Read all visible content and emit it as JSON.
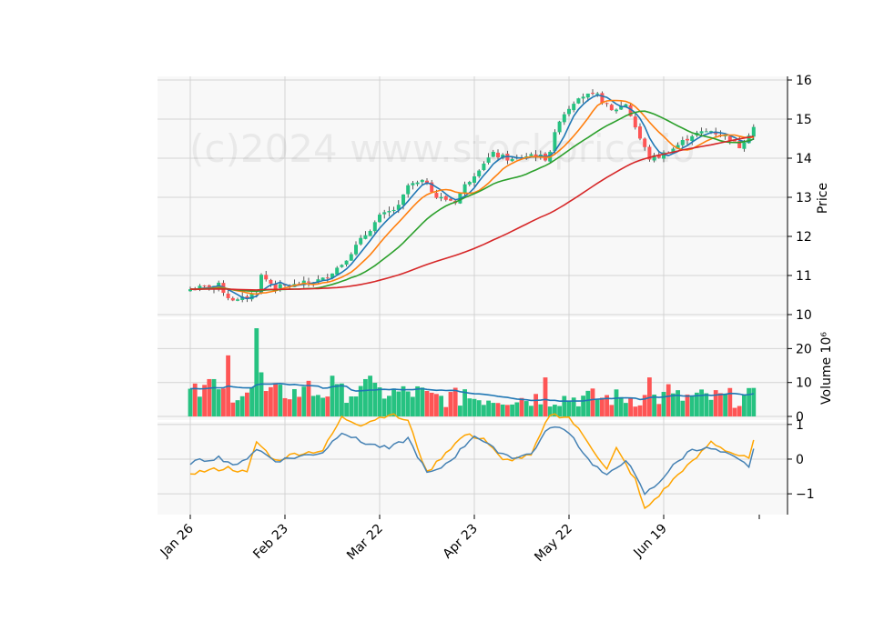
{
  "watermark": "(c)2024 www.stockprice.io",
  "colors": {
    "up": "#26c281",
    "down": "#fe5555",
    "ma_blue": "#1f77b4",
    "ma_orange": "#ff7f0e",
    "ma_green": "#2ca02c",
    "ma_red": "#d62728",
    "vol_ma": "#1f77b4",
    "osc_orange": "#ffa500",
    "osc_blue": "#4682b4",
    "panel_bg": "#f8f8f8",
    "grid": "#d3d3d3"
  },
  "chart_data": {
    "type": "candlestick",
    "x_labels": [
      "Jan 26",
      "Feb 23",
      "Mar 22",
      "Apr 23",
      "May 22",
      "Jun 19"
    ],
    "x_label_indices": [
      0,
      20,
      40,
      60,
      80,
      100
    ],
    "panels": {
      "price": {
        "ylabel": "Price",
        "ylim": [
          10,
          16
        ],
        "ticks": [
          10,
          11,
          12,
          13,
          14,
          15,
          16
        ]
      },
      "volume": {
        "ylabel": "Volume  10⁶",
        "ylim": [
          0,
          26
        ],
        "ticks": [
          0,
          10,
          20
        ]
      },
      "oscillator": {
        "ylim": [
          -1.6,
          1.1
        ],
        "ticks": [
          -1,
          0,
          1
        ],
        "tick_labels": [
          "−1",
          "0",
          "1"
        ]
      }
    },
    "ohlc_anchors": [
      [
        0,
        10.65
      ],
      [
        6,
        10.75
      ],
      [
        8,
        10.45
      ],
      [
        10,
        10.35
      ],
      [
        12,
        10.45
      ],
      [
        14,
        10.6
      ],
      [
        15,
        11.0
      ],
      [
        18,
        10.7
      ],
      [
        22,
        10.75
      ],
      [
        28,
        10.9
      ],
      [
        32,
        11.3
      ],
      [
        36,
        11.9
      ],
      [
        40,
        12.5
      ],
      [
        44,
        12.75
      ],
      [
        46,
        13.3
      ],
      [
        50,
        13.4
      ],
      [
        52,
        13.0
      ],
      [
        56,
        12.9
      ],
      [
        58,
        13.3
      ],
      [
        62,
        13.9
      ],
      [
        64,
        14.1
      ],
      [
        68,
        13.95
      ],
      [
        72,
        14.1
      ],
      [
        75,
        14.0
      ],
      [
        76,
        14.2
      ],
      [
        78,
        15.0
      ],
      [
        82,
        15.6
      ],
      [
        86,
        15.6
      ],
      [
        89,
        15.2
      ],
      [
        92,
        15.4
      ],
      [
        95,
        14.5
      ],
      [
        97,
        14.0
      ],
      [
        99,
        14.05
      ],
      [
        102,
        14.25
      ],
      [
        106,
        14.6
      ],
      [
        110,
        14.7
      ],
      [
        114,
        14.5
      ],
      [
        116,
        14.3
      ],
      [
        119,
        14.8
      ]
    ],
    "volume_spikes": {
      "4": 11,
      "5": 11,
      "8": 18,
      "14": 26,
      "15": 13,
      "25": 10.5,
      "30": 12,
      "37": 11,
      "38": 12,
      "58": 8,
      "75": 11.5,
      "97": 11.5,
      "101": 9.5
    },
    "moving_averages": [
      {
        "period": 5,
        "color_key": "ma_blue"
      },
      {
        "period": 10,
        "color_key": "ma_orange"
      },
      {
        "period": 20,
        "color_key": "ma_green"
      },
      {
        "period": 60,
        "color_key": "ma_red"
      }
    ],
    "oscillator_lines": [
      {
        "color_key": "osc_orange",
        "anchors": [
          [
            0,
            -0.4
          ],
          [
            8,
            -0.25
          ],
          [
            12,
            -0.4
          ],
          [
            14,
            0.5
          ],
          [
            18,
            -0.05
          ],
          [
            22,
            0.15
          ],
          [
            28,
            0.25
          ],
          [
            32,
            1.2
          ],
          [
            36,
            1.0
          ],
          [
            42,
            1.3
          ],
          [
            46,
            1.1
          ],
          [
            50,
            -0.4
          ],
          [
            52,
            -0.1
          ],
          [
            54,
            0.2
          ],
          [
            58,
            0.7
          ],
          [
            62,
            0.6
          ],
          [
            66,
            -0.05
          ],
          [
            72,
            0.1
          ],
          [
            76,
            1.3
          ],
          [
            80,
            1.2
          ],
          [
            84,
            0.5
          ],
          [
            88,
            -0.3
          ],
          [
            90,
            0.3
          ],
          [
            94,
            -0.6
          ],
          [
            96,
            -1.45
          ],
          [
            100,
            -0.9
          ],
          [
            104,
            -0.3
          ],
          [
            106,
            -0.1
          ],
          [
            110,
            0.5
          ],
          [
            114,
            0.2
          ],
          [
            118,
            0.0
          ],
          [
            119,
            0.5
          ]
        ]
      },
      {
        "color_key": "osc_blue",
        "anchors": [
          [
            0,
            -0.1
          ],
          [
            6,
            0.05
          ],
          [
            10,
            -0.2
          ],
          [
            14,
            0.3
          ],
          [
            18,
            -0.05
          ],
          [
            22,
            0.05
          ],
          [
            28,
            0.2
          ],
          [
            32,
            0.8
          ],
          [
            36,
            0.5
          ],
          [
            42,
            0.3
          ],
          [
            46,
            0.6
          ],
          [
            50,
            -0.4
          ],
          [
            52,
            -0.35
          ],
          [
            56,
            0.1
          ],
          [
            60,
            0.7
          ],
          [
            64,
            0.3
          ],
          [
            68,
            0.05
          ],
          [
            72,
            0.15
          ],
          [
            76,
            0.95
          ],
          [
            80,
            0.8
          ],
          [
            84,
            0.0
          ],
          [
            88,
            -0.5
          ],
          [
            92,
            0.0
          ],
          [
            96,
            -1.0
          ],
          [
            98,
            -0.8
          ],
          [
            102,
            -0.2
          ],
          [
            106,
            0.3
          ],
          [
            110,
            0.3
          ],
          [
            114,
            0.1
          ],
          [
            118,
            -0.2
          ],
          [
            119,
            0.3
          ]
        ]
      }
    ]
  }
}
